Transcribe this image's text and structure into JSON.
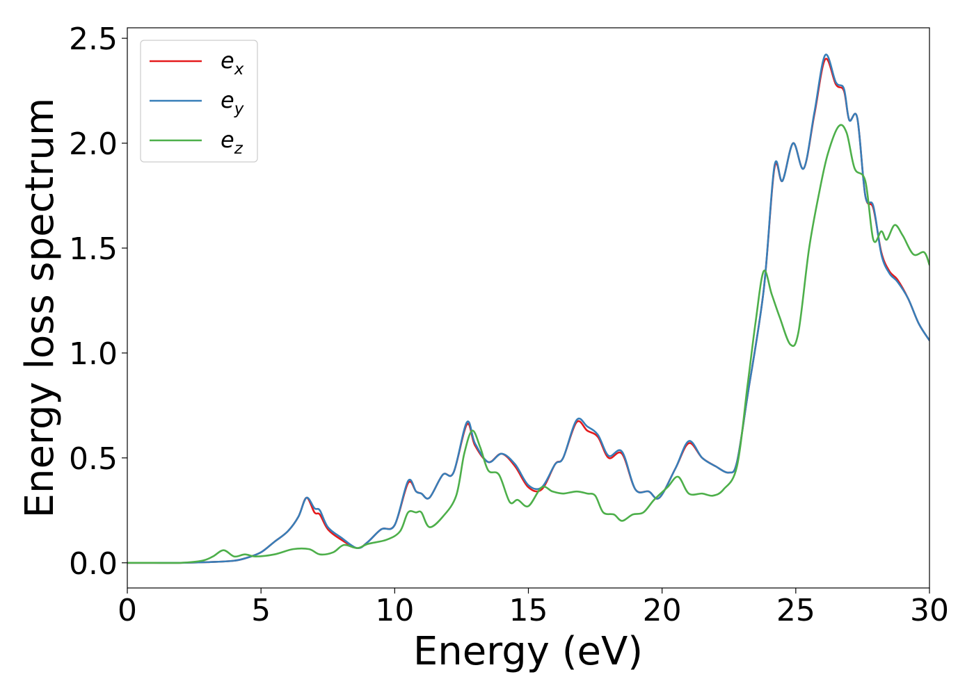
{
  "chart_data": {
    "type": "line",
    "title": "",
    "xlabel": "Energy (eV)",
    "ylabel": "Energy loss spectrum",
    "xlim": [
      0,
      30
    ],
    "ylim": [
      -0.12,
      2.55
    ],
    "xticks": [
      0,
      5,
      10,
      15,
      20,
      25,
      30
    ],
    "yticks": [
      0.0,
      0.5,
      1.0,
      1.5,
      2.0,
      2.5
    ],
    "xtick_labels": [
      "0",
      "5",
      "10",
      "15",
      "20",
      "25",
      "30"
    ],
    "ytick_labels": [
      "0.0",
      "0.5",
      "1.0",
      "1.5",
      "2.0",
      "2.5"
    ],
    "grid": false,
    "legend_position": "top-left",
    "series": [
      {
        "name": "e",
        "subscript": "x",
        "color": "#e41a1c",
        "points": [
          [
            0,
            0
          ],
          [
            1,
            0
          ],
          [
            2,
            0
          ],
          [
            3,
            0.003
          ],
          [
            4,
            0.01
          ],
          [
            4.5,
            0.025
          ],
          [
            5,
            0.05
          ],
          [
            5.5,
            0.1
          ],
          [
            6,
            0.15
          ],
          [
            6.4,
            0.22
          ],
          [
            6.7,
            0.31
          ],
          [
            7,
            0.24
          ],
          [
            7.2,
            0.23
          ],
          [
            7.5,
            0.16
          ],
          [
            8,
            0.11
          ],
          [
            8.6,
            0.07
          ],
          [
            9,
            0.1
          ],
          [
            9.5,
            0.16
          ],
          [
            10,
            0.18
          ],
          [
            10.5,
            0.38
          ],
          [
            10.8,
            0.34
          ],
          [
            11,
            0.33
          ],
          [
            11.3,
            0.31
          ],
          [
            11.8,
            0.42
          ],
          [
            12.2,
            0.43
          ],
          [
            12.7,
            0.66
          ],
          [
            13,
            0.56
          ],
          [
            13.5,
            0.48
          ],
          [
            14,
            0.52
          ],
          [
            14.5,
            0.46
          ],
          [
            15,
            0.36
          ],
          [
            15.5,
            0.35
          ],
          [
            16,
            0.47
          ],
          [
            16.3,
            0.5
          ],
          [
            16.8,
            0.67
          ],
          [
            17.2,
            0.63
          ],
          [
            17.6,
            0.6
          ],
          [
            18,
            0.5
          ],
          [
            18.5,
            0.52
          ],
          [
            19,
            0.35
          ],
          [
            19.5,
            0.34
          ],
          [
            19.9,
            0.31
          ],
          [
            20.5,
            0.45
          ],
          [
            21,
            0.57
          ],
          [
            21.5,
            0.5
          ],
          [
            22,
            0.46
          ],
          [
            22.5,
            0.43
          ],
          [
            22.8,
            0.48
          ],
          [
            23.2,
            0.8
          ],
          [
            23.8,
            1.3
          ],
          [
            24.2,
            1.88
          ],
          [
            24.5,
            1.82
          ],
          [
            24.9,
            2.0
          ],
          [
            25.3,
            1.88
          ],
          [
            25.7,
            2.14
          ],
          [
            26.1,
            2.4
          ],
          [
            26.5,
            2.28
          ],
          [
            26.8,
            2.25
          ],
          [
            27,
            2.11
          ],
          [
            27.3,
            2.12
          ],
          [
            27.6,
            1.75
          ],
          [
            27.9,
            1.69
          ],
          [
            28.2,
            1.48
          ],
          [
            28.5,
            1.39
          ],
          [
            28.8,
            1.35
          ],
          [
            29.2,
            1.26
          ],
          [
            29.6,
            1.14
          ],
          [
            30,
            1.06
          ]
        ]
      },
      {
        "name": "e",
        "subscript": "y",
        "color": "#377eb8",
        "points": [
          [
            0,
            0
          ],
          [
            1,
            0
          ],
          [
            2,
            0
          ],
          [
            3,
            0.003
          ],
          [
            4,
            0.01
          ],
          [
            4.5,
            0.025
          ],
          [
            5,
            0.05
          ],
          [
            5.5,
            0.1
          ],
          [
            6,
            0.15
          ],
          [
            6.4,
            0.22
          ],
          [
            6.7,
            0.31
          ],
          [
            7,
            0.26
          ],
          [
            7.2,
            0.25
          ],
          [
            7.5,
            0.17
          ],
          [
            8,
            0.12
          ],
          [
            8.6,
            0.07
          ],
          [
            9,
            0.1
          ],
          [
            9.5,
            0.16
          ],
          [
            10,
            0.18
          ],
          [
            10.5,
            0.39
          ],
          [
            10.8,
            0.34
          ],
          [
            11,
            0.33
          ],
          [
            11.3,
            0.31
          ],
          [
            11.8,
            0.42
          ],
          [
            12.2,
            0.43
          ],
          [
            12.7,
            0.67
          ],
          [
            13,
            0.57
          ],
          [
            13.5,
            0.48
          ],
          [
            14,
            0.52
          ],
          [
            14.5,
            0.47
          ],
          [
            15,
            0.37
          ],
          [
            15.5,
            0.36
          ],
          [
            16,
            0.47
          ],
          [
            16.3,
            0.5
          ],
          [
            16.8,
            0.68
          ],
          [
            17.2,
            0.65
          ],
          [
            17.6,
            0.61
          ],
          [
            18,
            0.51
          ],
          [
            18.5,
            0.53
          ],
          [
            19,
            0.35
          ],
          [
            19.5,
            0.34
          ],
          [
            19.9,
            0.31
          ],
          [
            20.5,
            0.45
          ],
          [
            21,
            0.58
          ],
          [
            21.5,
            0.5
          ],
          [
            22,
            0.46
          ],
          [
            22.5,
            0.43
          ],
          [
            22.8,
            0.48
          ],
          [
            23.2,
            0.8
          ],
          [
            23.8,
            1.3
          ],
          [
            24.2,
            1.89
          ],
          [
            24.5,
            1.82
          ],
          [
            24.9,
            2.0
          ],
          [
            25.3,
            1.88
          ],
          [
            25.7,
            2.15
          ],
          [
            26.1,
            2.42
          ],
          [
            26.5,
            2.29
          ],
          [
            26.8,
            2.26
          ],
          [
            27,
            2.11
          ],
          [
            27.3,
            2.12
          ],
          [
            27.6,
            1.75
          ],
          [
            27.9,
            1.7
          ],
          [
            28.2,
            1.47
          ],
          [
            28.5,
            1.38
          ],
          [
            28.8,
            1.34
          ],
          [
            29.2,
            1.26
          ],
          [
            29.6,
            1.14
          ],
          [
            30,
            1.06
          ]
        ]
      },
      {
        "name": "e",
        "subscript": "z",
        "color": "#4daf4a",
        "points": [
          [
            0,
            0
          ],
          [
            1,
            0
          ],
          [
            2,
            0
          ],
          [
            2.8,
            0.01
          ],
          [
            3.2,
            0.03
          ],
          [
            3.6,
            0.06
          ],
          [
            4,
            0.03
          ],
          [
            4.4,
            0.04
          ],
          [
            4.8,
            0.03
          ],
          [
            5.5,
            0.04
          ],
          [
            6.2,
            0.065
          ],
          [
            6.8,
            0.065
          ],
          [
            7.2,
            0.04
          ],
          [
            7.7,
            0.05
          ],
          [
            8.1,
            0.085
          ],
          [
            8.6,
            0.07
          ],
          [
            9,
            0.09
          ],
          [
            9.7,
            0.11
          ],
          [
            10.2,
            0.15
          ],
          [
            10.5,
            0.24
          ],
          [
            10.8,
            0.24
          ],
          [
            11,
            0.24
          ],
          [
            11.3,
            0.17
          ],
          [
            11.8,
            0.22
          ],
          [
            12.3,
            0.32
          ],
          [
            12.6,
            0.52
          ],
          [
            12.9,
            0.63
          ],
          [
            13.2,
            0.55
          ],
          [
            13.5,
            0.44
          ],
          [
            13.9,
            0.42
          ],
          [
            14.3,
            0.29
          ],
          [
            14.6,
            0.3
          ],
          [
            15,
            0.27
          ],
          [
            15.5,
            0.36
          ],
          [
            15.9,
            0.34
          ],
          [
            16.3,
            0.33
          ],
          [
            16.8,
            0.34
          ],
          [
            17.2,
            0.33
          ],
          [
            17.5,
            0.32
          ],
          [
            17.8,
            0.24
          ],
          [
            18.2,
            0.23
          ],
          [
            18.5,
            0.2
          ],
          [
            18.9,
            0.23
          ],
          [
            19.3,
            0.24
          ],
          [
            19.7,
            0.3
          ],
          [
            20.2,
            0.36
          ],
          [
            20.6,
            0.41
          ],
          [
            21,
            0.33
          ],
          [
            21.5,
            0.33
          ],
          [
            21.9,
            0.32
          ],
          [
            22.3,
            0.35
          ],
          [
            22.8,
            0.46
          ],
          [
            23.2,
            0.85
          ],
          [
            23.5,
            1.15
          ],
          [
            23.8,
            1.39
          ],
          [
            24.1,
            1.28
          ],
          [
            24.4,
            1.17
          ],
          [
            24.8,
            1.04
          ],
          [
            25.1,
            1.1
          ],
          [
            25.5,
            1.5
          ],
          [
            25.9,
            1.78
          ],
          [
            26.2,
            1.95
          ],
          [
            26.6,
            2.08
          ],
          [
            26.9,
            2.05
          ],
          [
            27.2,
            1.88
          ],
          [
            27.6,
            1.82
          ],
          [
            27.9,
            1.54
          ],
          [
            28.2,
            1.58
          ],
          [
            28.4,
            1.54
          ],
          [
            28.7,
            1.61
          ],
          [
            29,
            1.56
          ],
          [
            29.4,
            1.47
          ],
          [
            29.8,
            1.48
          ],
          [
            30,
            1.42
          ]
        ]
      }
    ]
  }
}
